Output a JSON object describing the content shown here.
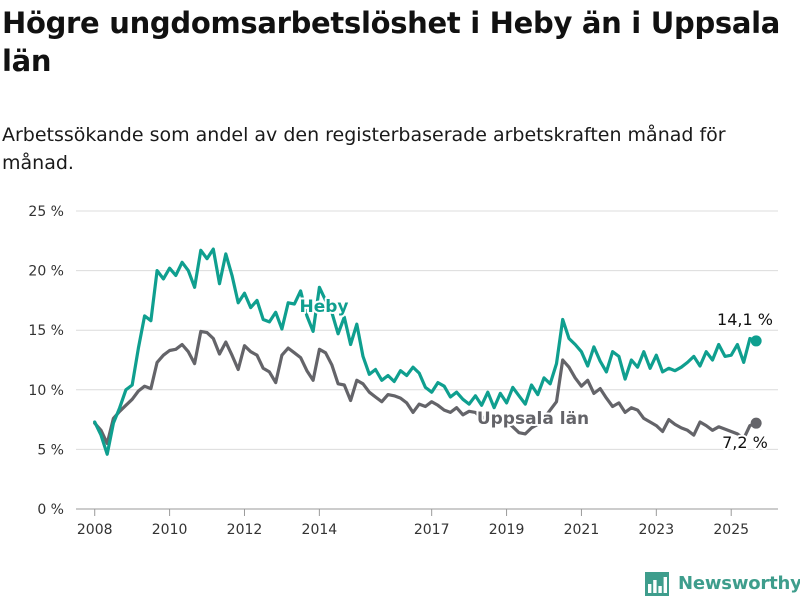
{
  "title": "Högre ungdomsarbetslöshet i Heby än i Uppsala län",
  "subtitle": "Arbetssökande som andel av den registerbaserade arbetskraften månad för månad.",
  "brand": {
    "name": "Newsworthy",
    "color": "#3e9d8c",
    "icon": "bar-chart-logo-icon"
  },
  "chart_data": {
    "type": "line",
    "x_ticks": [
      "2008",
      "2010",
      "2012",
      "2014",
      "2017",
      "2019",
      "2021",
      "2023",
      "2025"
    ],
    "y_ticks": [
      "0 %",
      "5 %",
      "10 %",
      "15 %",
      "20 %",
      "25 %"
    ],
    "ylim": [
      0,
      25
    ],
    "xlim": [
      "2007-07",
      "2026-04"
    ],
    "grid": true,
    "legend": "inline labels on lines",
    "series": [
      {
        "name": "Heby",
        "color": "#0f9f8f",
        "end_label": "14,1 %",
        "points": [
          [
            "2008-01",
            7.3
          ],
          [
            "2008-03",
            6.2
          ],
          [
            "2008-05",
            4.6
          ],
          [
            "2008-07",
            7.2
          ],
          [
            "2008-09",
            8.5
          ],
          [
            "2008-11",
            10.0
          ],
          [
            "2009-01",
            10.4
          ],
          [
            "2009-03",
            13.5
          ],
          [
            "2009-05",
            16.2
          ],
          [
            "2009-07",
            15.8
          ],
          [
            "2009-09",
            20.0
          ],
          [
            "2009-11",
            19.3
          ],
          [
            "2010-01",
            20.2
          ],
          [
            "2010-03",
            19.6
          ],
          [
            "2010-05",
            20.7
          ],
          [
            "2010-07",
            20.0
          ],
          [
            "2010-09",
            18.6
          ],
          [
            "2010-11",
            21.7
          ],
          [
            "2011-01",
            21.0
          ],
          [
            "2011-03",
            21.8
          ],
          [
            "2011-05",
            18.9
          ],
          [
            "2011-07",
            21.4
          ],
          [
            "2011-09",
            19.6
          ],
          [
            "2011-11",
            17.3
          ],
          [
            "2012-01",
            18.1
          ],
          [
            "2012-03",
            16.9
          ],
          [
            "2012-05",
            17.5
          ],
          [
            "2012-07",
            15.9
          ],
          [
            "2012-09",
            15.7
          ],
          [
            "2012-11",
            16.5
          ],
          [
            "2013-01",
            15.1
          ],
          [
            "2013-03",
            17.3
          ],
          [
            "2013-05",
            17.2
          ],
          [
            "2013-07",
            18.3
          ],
          [
            "2013-09",
            16.2
          ],
          [
            "2013-11",
            14.9
          ],
          [
            "2014-01",
            18.6
          ],
          [
            "2014-03",
            17.5
          ],
          [
            "2014-05",
            16.5
          ],
          [
            "2014-07",
            14.7
          ],
          [
            "2014-09",
            16.1
          ],
          [
            "2014-11",
            13.8
          ],
          [
            "2015-01",
            15.5
          ],
          [
            "2015-03",
            12.8
          ],
          [
            "2015-05",
            11.3
          ],
          [
            "2015-07",
            11.7
          ],
          [
            "2015-09",
            10.8
          ],
          [
            "2015-11",
            11.2
          ],
          [
            "2016-01",
            10.7
          ],
          [
            "2016-03",
            11.6
          ],
          [
            "2016-05",
            11.2
          ],
          [
            "2016-07",
            11.9
          ],
          [
            "2016-09",
            11.4
          ],
          [
            "2016-11",
            10.2
          ],
          [
            "2017-01",
            9.8
          ],
          [
            "2017-03",
            10.6
          ],
          [
            "2017-05",
            10.3
          ],
          [
            "2017-07",
            9.4
          ],
          [
            "2017-09",
            9.8
          ],
          [
            "2017-11",
            9.2
          ],
          [
            "2018-01",
            8.8
          ],
          [
            "2018-03",
            9.5
          ],
          [
            "2018-05",
            8.7
          ],
          [
            "2018-07",
            9.8
          ],
          [
            "2018-09",
            8.5
          ],
          [
            "2018-11",
            9.7
          ],
          [
            "2019-01",
            8.9
          ],
          [
            "2019-03",
            10.2
          ],
          [
            "2019-05",
            9.5
          ],
          [
            "2019-07",
            8.8
          ],
          [
            "2019-09",
            10.4
          ],
          [
            "2019-11",
            9.6
          ],
          [
            "2020-01",
            11.0
          ],
          [
            "2020-03",
            10.5
          ],
          [
            "2020-05",
            12.2
          ],
          [
            "2020-07",
            15.9
          ],
          [
            "2020-09",
            14.3
          ],
          [
            "2020-11",
            13.8
          ],
          [
            "2021-01",
            13.2
          ],
          [
            "2021-03",
            12.0
          ],
          [
            "2021-05",
            13.6
          ],
          [
            "2021-07",
            12.4
          ],
          [
            "2021-09",
            11.5
          ],
          [
            "2021-11",
            13.2
          ],
          [
            "2022-01",
            12.8
          ],
          [
            "2022-03",
            10.9
          ],
          [
            "2022-05",
            12.5
          ],
          [
            "2022-07",
            11.9
          ],
          [
            "2022-09",
            13.2
          ],
          [
            "2022-11",
            11.8
          ],
          [
            "2023-01",
            12.9
          ],
          [
            "2023-03",
            11.5
          ],
          [
            "2023-05",
            11.8
          ],
          [
            "2023-07",
            11.6
          ],
          [
            "2023-09",
            11.9
          ],
          [
            "2023-11",
            12.3
          ],
          [
            "2024-01",
            12.8
          ],
          [
            "2024-03",
            12.0
          ],
          [
            "2024-05",
            13.2
          ],
          [
            "2024-07",
            12.5
          ],
          [
            "2024-09",
            13.8
          ],
          [
            "2024-11",
            12.8
          ],
          [
            "2025-01",
            12.9
          ],
          [
            "2025-03",
            13.8
          ],
          [
            "2025-05",
            12.3
          ],
          [
            "2025-07",
            14.3
          ],
          [
            "2025-09",
            14.1
          ]
        ]
      },
      {
        "name": "Uppsala län",
        "color": "#646469",
        "end_label": "7,2 %",
        "points": [
          [
            "2008-01",
            7.2
          ],
          [
            "2008-03",
            6.6
          ],
          [
            "2008-05",
            5.5
          ],
          [
            "2008-07",
            7.6
          ],
          [
            "2008-09",
            8.2
          ],
          [
            "2008-11",
            8.7
          ],
          [
            "2009-01",
            9.2
          ],
          [
            "2009-03",
            9.9
          ],
          [
            "2009-05",
            10.3
          ],
          [
            "2009-07",
            10.1
          ],
          [
            "2009-09",
            12.3
          ],
          [
            "2009-11",
            12.9
          ],
          [
            "2010-01",
            13.3
          ],
          [
            "2010-03",
            13.4
          ],
          [
            "2010-05",
            13.8
          ],
          [
            "2010-07",
            13.2
          ],
          [
            "2010-09",
            12.2
          ],
          [
            "2010-11",
            14.9
          ],
          [
            "2011-01",
            14.8
          ],
          [
            "2011-03",
            14.3
          ],
          [
            "2011-05",
            13.0
          ],
          [
            "2011-07",
            14.0
          ],
          [
            "2011-09",
            12.9
          ],
          [
            "2011-11",
            11.7
          ],
          [
            "2012-01",
            13.7
          ],
          [
            "2012-03",
            13.2
          ],
          [
            "2012-05",
            12.9
          ],
          [
            "2012-07",
            11.8
          ],
          [
            "2012-09",
            11.5
          ],
          [
            "2012-11",
            10.6
          ],
          [
            "2013-01",
            12.9
          ],
          [
            "2013-03",
            13.5
          ],
          [
            "2013-05",
            13.1
          ],
          [
            "2013-07",
            12.7
          ],
          [
            "2013-09",
            11.6
          ],
          [
            "2013-11",
            10.8
          ],
          [
            "2014-01",
            13.4
          ],
          [
            "2014-03",
            13.1
          ],
          [
            "2014-05",
            12.1
          ],
          [
            "2014-07",
            10.5
          ],
          [
            "2014-09",
            10.4
          ],
          [
            "2014-11",
            9.1
          ],
          [
            "2015-01",
            10.8
          ],
          [
            "2015-03",
            10.5
          ],
          [
            "2015-05",
            9.8
          ],
          [
            "2015-07",
            9.4
          ],
          [
            "2015-09",
            9.0
          ],
          [
            "2015-11",
            9.6
          ],
          [
            "2016-01",
            9.5
          ],
          [
            "2016-03",
            9.3
          ],
          [
            "2016-05",
            8.9
          ],
          [
            "2016-07",
            8.1
          ],
          [
            "2016-09",
            8.8
          ],
          [
            "2016-11",
            8.6
          ],
          [
            "2017-01",
            9.0
          ],
          [
            "2017-03",
            8.7
          ],
          [
            "2017-05",
            8.3
          ],
          [
            "2017-07",
            8.1
          ],
          [
            "2017-09",
            8.5
          ],
          [
            "2017-11",
            7.9
          ],
          [
            "2018-01",
            8.2
          ],
          [
            "2018-03",
            8.1
          ],
          [
            "2018-05",
            7.6
          ],
          [
            "2018-07",
            7.8
          ],
          [
            "2018-09",
            7.3
          ],
          [
            "2018-11",
            7.6
          ],
          [
            "2019-01",
            7.4
          ],
          [
            "2019-03",
            6.9
          ],
          [
            "2019-05",
            6.4
          ],
          [
            "2019-07",
            6.3
          ],
          [
            "2019-09",
            6.8
          ],
          [
            "2019-11",
            7.1
          ],
          [
            "2020-01",
            7.6
          ],
          [
            "2020-03",
            8.3
          ],
          [
            "2020-05",
            9.0
          ],
          [
            "2020-07",
            12.5
          ],
          [
            "2020-09",
            11.9
          ],
          [
            "2020-11",
            11.0
          ],
          [
            "2021-01",
            10.3
          ],
          [
            "2021-03",
            10.8
          ],
          [
            "2021-05",
            9.7
          ],
          [
            "2021-07",
            10.1
          ],
          [
            "2021-09",
            9.3
          ],
          [
            "2021-11",
            8.6
          ],
          [
            "2022-01",
            8.9
          ],
          [
            "2022-03",
            8.1
          ],
          [
            "2022-05",
            8.5
          ],
          [
            "2022-07",
            8.3
          ],
          [
            "2022-09",
            7.6
          ],
          [
            "2022-11",
            7.3
          ],
          [
            "2023-01",
            7.0
          ],
          [
            "2023-03",
            6.5
          ],
          [
            "2023-05",
            7.5
          ],
          [
            "2023-07",
            7.1
          ],
          [
            "2023-09",
            6.8
          ],
          [
            "2023-11",
            6.6
          ],
          [
            "2024-01",
            6.2
          ],
          [
            "2024-03",
            7.3
          ],
          [
            "2024-05",
            7.0
          ],
          [
            "2024-07",
            6.6
          ],
          [
            "2024-09",
            6.9
          ],
          [
            "2024-11",
            6.7
          ],
          [
            "2025-01",
            6.5
          ],
          [
            "2025-03",
            6.3
          ],
          [
            "2025-05",
            5.9
          ],
          [
            "2025-07",
            7.0
          ],
          [
            "2025-09",
            7.2
          ]
        ]
      }
    ]
  }
}
